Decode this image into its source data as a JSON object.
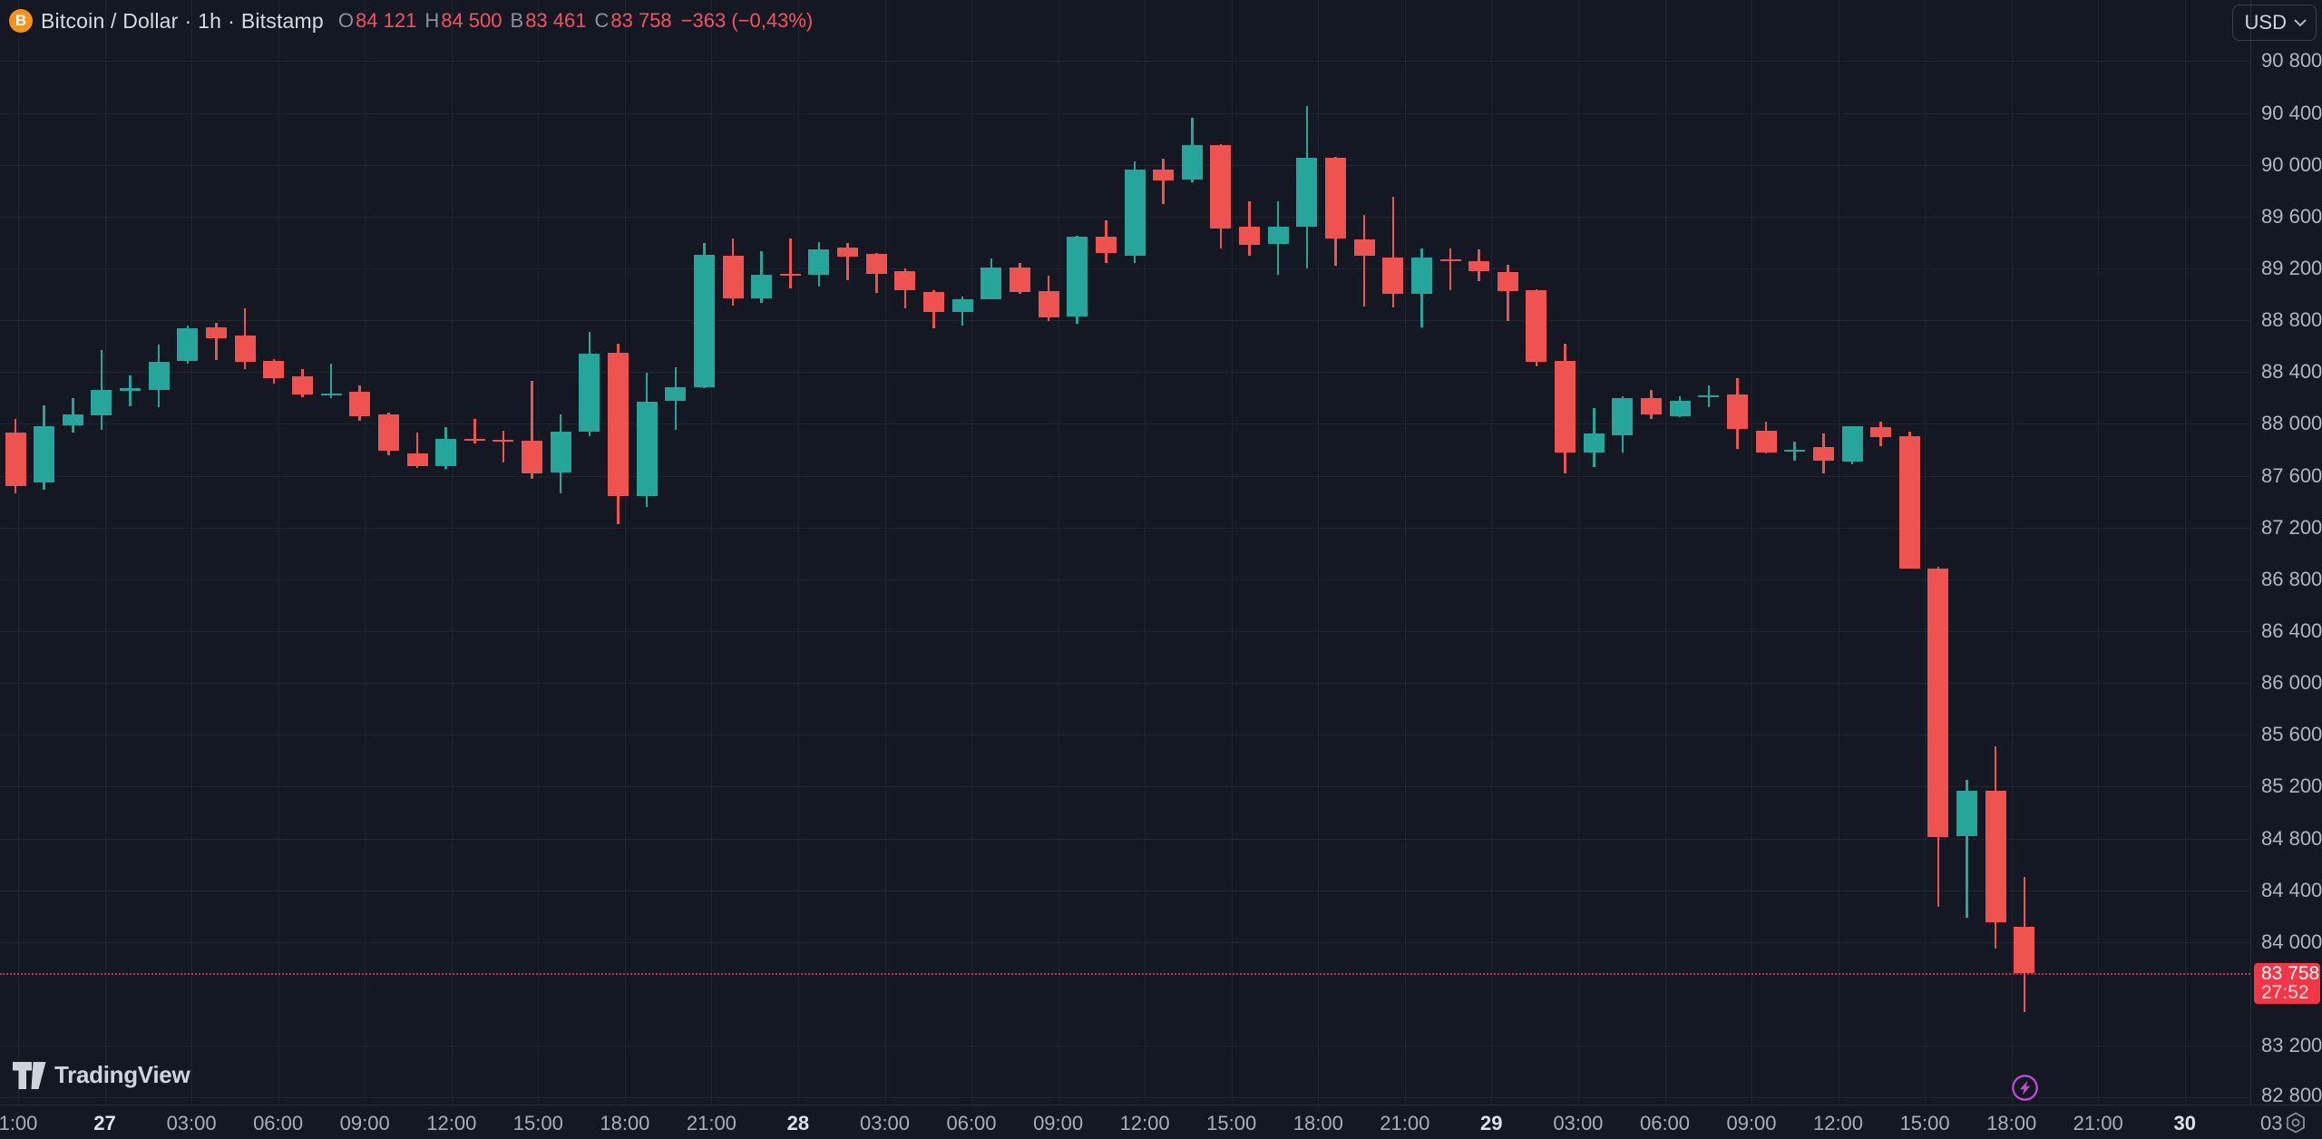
{
  "header": {
    "symbol_name": "Bitcoin / Dollar",
    "separator": "·",
    "interval": "1h",
    "exchange": "Bitstamp",
    "ohlc": {
      "o_key": "O",
      "o_val": "84 121",
      "h_key": "H",
      "h_val": "84 500",
      "l_key": "B",
      "l_val": "83 461",
      "c_key": "C",
      "c_val": "83 758",
      "change": "−363 (−0,43%)"
    }
  },
  "toolbar": {
    "currency_label": "USD"
  },
  "logo": {
    "text": "TradingView"
  },
  "icons": {
    "bitcoin": "B",
    "chevron_down": "⌄",
    "lightning": "⚡",
    "scale_settings": "⬡"
  },
  "price_axis": {
    "labels": [
      "90 800",
      "90 400",
      "90 000",
      "89 600",
      "89 200",
      "88 800",
      "88 400",
      "88 000",
      "87 600",
      "87 200",
      "86 800",
      "86 400",
      "86 000",
      "85 600",
      "85 200",
      "84 800",
      "84 400",
      "84 000",
      "83 200",
      "82 800"
    ],
    "current": {
      "price_label": "83 758",
      "countdown": "27:52",
      "value": 83758
    }
  },
  "time_axis": {
    "labels": [
      {
        "t": "1:00"
      },
      {
        "t": "27",
        "bold": true
      },
      {
        "t": "03:00"
      },
      {
        "t": "06:00"
      },
      {
        "t": "09:00"
      },
      {
        "t": "12:00"
      },
      {
        "t": "15:00"
      },
      {
        "t": "18:00"
      },
      {
        "t": "21:00"
      },
      {
        "t": "28",
        "bold": true
      },
      {
        "t": "03:00"
      },
      {
        "t": "06:00"
      },
      {
        "t": "09:00"
      },
      {
        "t": "12:00"
      },
      {
        "t": "15:00"
      },
      {
        "t": "18:00"
      },
      {
        "t": "21:00"
      },
      {
        "t": "29",
        "bold": true
      },
      {
        "t": "03:00"
      },
      {
        "t": "06:00"
      },
      {
        "t": "09:00"
      },
      {
        "t": "12:00"
      },
      {
        "t": "15:00"
      },
      {
        "t": "18:00"
      },
      {
        "t": "21:00"
      },
      {
        "t": "30",
        "bold": true
      },
      {
        "t": "03"
      }
    ]
  },
  "chart_data": {
    "type": "candlestick",
    "title": "Bitcoin / Dollar · 1h · Bitstamp",
    "interval": "1h",
    "ylim": [
      82800,
      90800
    ],
    "y_tick_step": 400,
    "grid": true,
    "up_color": "#26a69a",
    "down_color": "#ef5350",
    "last_price": 83758,
    "legend_ohlc": {
      "open": 84121,
      "high": 84500,
      "low": 83461,
      "close": 83758,
      "change": -363,
      "change_pct": "−0,43%"
    },
    "x_tick_labels": [
      "1:00",
      "27",
      "03:00",
      "06:00",
      "09:00",
      "12:00",
      "15:00",
      "18:00",
      "21:00",
      "28",
      "03:00",
      "06:00",
      "09:00",
      "12:00",
      "15:00",
      "18:00",
      "21:00",
      "29",
      "03:00",
      "06:00",
      "09:00",
      "12:00",
      "15:00",
      "18:00",
      "21:00",
      "30",
      "03"
    ],
    "candles_format": [
      "open",
      "high",
      "low",
      "close"
    ],
    "candles": [
      [
        87930,
        88040,
        87460,
        87520
      ],
      [
        87550,
        88140,
        87490,
        87985
      ],
      [
        87990,
        88200,
        87935,
        88075
      ],
      [
        88065,
        88570,
        87955,
        88265
      ],
      [
        88265,
        88375,
        88135,
        88275
      ],
      [
        88260,
        88610,
        88130,
        88480
      ],
      [
        88485,
        88760,
        88465,
        88735
      ],
      [
        88742,
        88780,
        88490,
        88660
      ],
      [
        88685,
        88890,
        88420,
        88480
      ],
      [
        88487,
        88500,
        88313,
        88353
      ],
      [
        88365,
        88420,
        88205,
        88225
      ],
      [
        88225,
        88465,
        88195,
        88235
      ],
      [
        88250,
        88300,
        88025,
        88060
      ],
      [
        88075,
        88085,
        87760,
        87795
      ],
      [
        87770,
        87935,
        87660,
        87675
      ],
      [
        87675,
        87975,
        87650,
        87885
      ],
      [
        87885,
        88040,
        87850,
        87870
      ],
      [
        87880,
        87950,
        87700,
        87868
      ],
      [
        87870,
        88330,
        87575,
        87620
      ],
      [
        87625,
        88070,
        87465,
        87940
      ],
      [
        87940,
        88710,
        87905,
        88540
      ],
      [
        88550,
        88620,
        87225,
        87445
      ],
      [
        87440,
        88395,
        87360,
        88170
      ],
      [
        88175,
        88435,
        87950,
        88285
      ],
      [
        88285,
        89395,
        88275,
        89305
      ],
      [
        89300,
        89430,
        88910,
        88965
      ],
      [
        88965,
        89335,
        88930,
        89150
      ],
      [
        89160,
        89430,
        89045,
        89145
      ],
      [
        89150,
        89400,
        89060,
        89350
      ],
      [
        89360,
        89395,
        89105,
        89290
      ],
      [
        89315,
        89320,
        89010,
        89160
      ],
      [
        89180,
        89200,
        88890,
        89030
      ],
      [
        89015,
        89030,
        88740,
        88865
      ],
      [
        88865,
        88980,
        88755,
        88960
      ],
      [
        88965,
        89280,
        88960,
        89210
      ],
      [
        89205,
        89240,
        89000,
        89020
      ],
      [
        89025,
        89145,
        88795,
        88820
      ],
      [
        88825,
        89450,
        88770,
        89445
      ],
      [
        89445,
        89570,
        89240,
        89315
      ],
      [
        89300,
        90025,
        89240,
        89960
      ],
      [
        89960,
        90050,
        89700,
        89880
      ],
      [
        89885,
        90360,
        89865,
        90150
      ],
      [
        90155,
        90160,
        89350,
        89505
      ],
      [
        89520,
        89720,
        89300,
        89380
      ],
      [
        89385,
        89715,
        89150,
        89520
      ],
      [
        89520,
        90450,
        89200,
        90055
      ],
      [
        90055,
        90060,
        89220,
        89430
      ],
      [
        89425,
        89610,
        88905,
        89295
      ],
      [
        89285,
        89755,
        88900,
        89005
      ],
      [
        89000,
        89355,
        88745,
        89285
      ],
      [
        89270,
        89355,
        89030,
        89255
      ],
      [
        89255,
        89345,
        89100,
        89175
      ],
      [
        89175,
        89230,
        88790,
        89025
      ],
      [
        89030,
        89040,
        88440,
        88480
      ],
      [
        88485,
        88620,
        87615,
        87775
      ],
      [
        87775,
        88125,
        87670,
        87925
      ],
      [
        87910,
        88215,
        87775,
        88200
      ],
      [
        88200,
        88265,
        88040,
        88070
      ],
      [
        88055,
        88215,
        88050,
        88180
      ],
      [
        88210,
        88295,
        88130,
        88220
      ],
      [
        88230,
        88350,
        87805,
        87960
      ],
      [
        87945,
        88020,
        87770,
        87775
      ],
      [
        87790,
        87865,
        87715,
        87800
      ],
      [
        87820,
        87925,
        87620,
        87715
      ],
      [
        87705,
        87985,
        87685,
        87980
      ],
      [
        87975,
        88015,
        87830,
        87895
      ],
      [
        87905,
        87940,
        86880,
        86885
      ],
      [
        86880,
        86895,
        84270,
        84810
      ],
      [
        84815,
        85255,
        84190,
        85165
      ],
      [
        85165,
        85510,
        83950,
        84150
      ],
      [
        84121,
        84500,
        83461,
        83758
      ]
    ]
  }
}
